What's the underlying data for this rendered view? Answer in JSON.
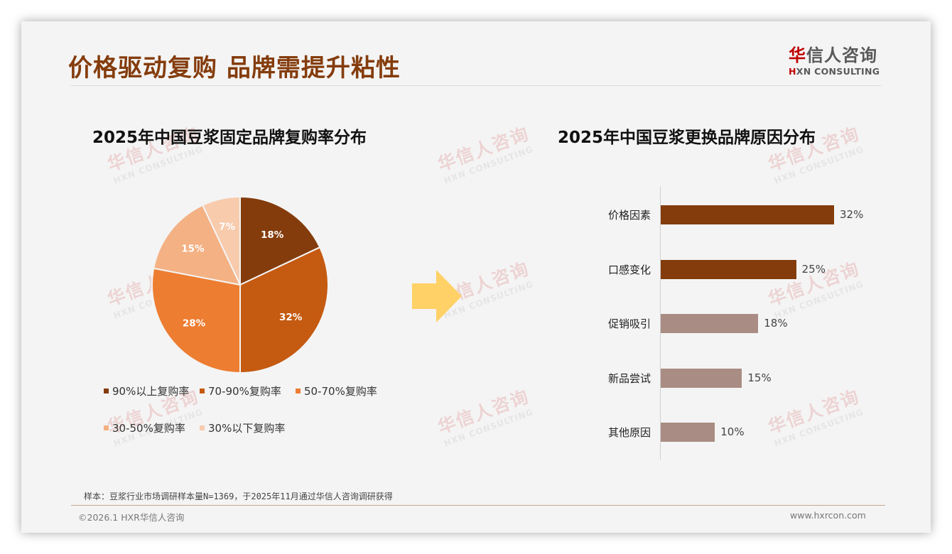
{
  "header": {
    "title": "价格驱动复购 品牌需提升粘性",
    "logo_cn_first": "华",
    "logo_cn_rest": "信人咨询",
    "logo_en_first": "H",
    "logo_en_rest": "XN CONSULTING"
  },
  "watermark": {
    "cn": "华信人咨询",
    "en": "HXN CONSULTING"
  },
  "colors": {
    "title": "#843c0c",
    "pie": [
      "#843c0c",
      "#c55a11",
      "#ed7d31",
      "#f4b183",
      "#f8cbad"
    ],
    "bar_top": "#843c0c",
    "bar_rest": "#a98c83",
    "arrow": "#ffd166"
  },
  "chart_data": [
    {
      "type": "pie",
      "title": "2025年中国豆浆固定品牌复购率分布",
      "categories": [
        "90%以上复购率",
        "70-90%复购率",
        "50-70%复购率",
        "30-50%复购率",
        "30%以下复购率"
      ],
      "values": [
        18,
        32,
        28,
        15,
        7
      ],
      "labels": [
        "18%",
        "32%",
        "28%",
        "15%",
        "7%"
      ],
      "legend_position": "bottom"
    },
    {
      "type": "bar",
      "orientation": "horizontal",
      "title": "2025年中国豆浆更换品牌原因分布",
      "categories": [
        "价格因素",
        "口感变化",
        "促销吸引",
        "新品尝试",
        "其他原因"
      ],
      "values": [
        32,
        25,
        18,
        15,
        10
      ],
      "labels": [
        "32%",
        "25%",
        "18%",
        "15%",
        "10%"
      ],
      "grid": false
    }
  ],
  "footer": {
    "note": "样本：豆浆行业市场调研样本量N=1369，于2025年11月通过华信人咨询调研获得",
    "copyright": "©2026.1 HXR华信人咨询",
    "website": "www.hxrcon.com"
  }
}
